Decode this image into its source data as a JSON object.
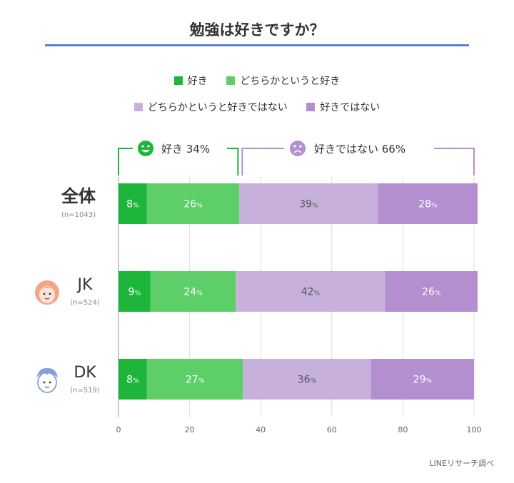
{
  "title": "勉強は好きですか？",
  "legend": [
    {
      "label": "好き",
      "color": "#1db53a"
    },
    {
      "label": "どちらかというと好き",
      "color": "#5ecf68"
    },
    {
      "label": "どちらかというと好きではない",
      "color": "#c8b0dc"
    },
    {
      "label": "好きではない",
      "color": "#b38fcf"
    }
  ],
  "brackets": {
    "like": {
      "label": "好き 34%",
      "color": "#1db53a",
      "icon": "smile-face-icon"
    },
    "dislike": {
      "label": "好きではない 66%",
      "color": "#b38fcf",
      "icon": "sad-face-icon"
    }
  },
  "credit": "LINEリサーチ調べ",
  "chart_data": {
    "type": "bar",
    "orientation": "horizontal",
    "stacked": true,
    "categories": [
      {
        "label": "全体",
        "n": "(n=1043)",
        "icon": ""
      },
      {
        "label": "JK",
        "n": "(n=524)",
        "icon": "girl-face-icon"
      },
      {
        "label": "DK",
        "n": "(n=519)",
        "icon": "boy-face-icon"
      }
    ],
    "series": [
      {
        "name": "好き",
        "color": "#1db53a",
        "values": [
          8,
          9,
          8
        ],
        "labels": [
          "8%",
          "9%",
          "8%"
        ]
      },
      {
        "name": "どちらかというと好き",
        "color": "#5ecf68",
        "values": [
          26,
          24,
          27
        ],
        "labels": [
          "26%",
          "24%",
          "27%"
        ]
      },
      {
        "name": "どちらかというと好きではない",
        "color": "#c8b0dc",
        "values": [
          39,
          42,
          36
        ],
        "labels": [
          "39%",
          "42%",
          "36%"
        ]
      },
      {
        "name": "好きではない",
        "color": "#b38fcf",
        "values": [
          28,
          26,
          29
        ],
        "labels": [
          "28%",
          "26%",
          "29%"
        ]
      }
    ],
    "xlim": [
      0,
      100
    ],
    "xticks": [
      "0",
      "20",
      "40",
      "60",
      "80",
      "100"
    ],
    "grid": true
  }
}
